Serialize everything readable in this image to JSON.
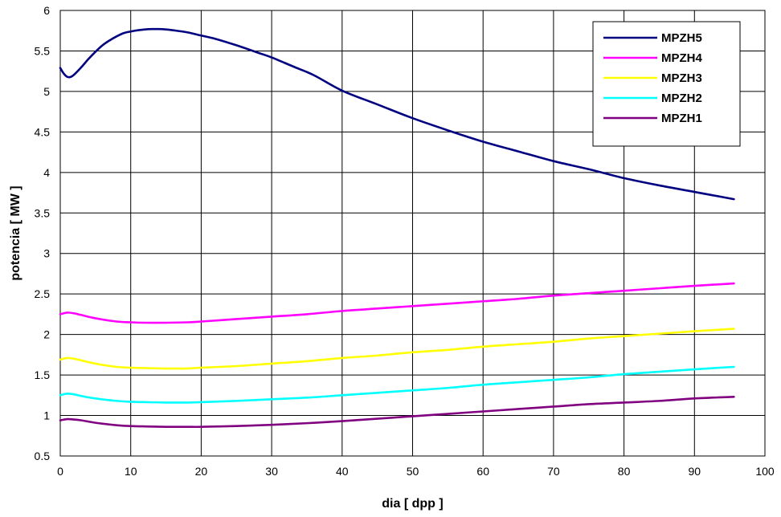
{
  "chart_data": {
    "type": "line",
    "xlabel": "dia [ dpp ]",
    "ylabel": "potencia [ MW ]",
    "xlim": [
      0,
      100
    ],
    "ylim": [
      0.5,
      6
    ],
    "xticks": [
      0,
      10,
      20,
      30,
      40,
      50,
      60,
      70,
      80,
      90,
      100
    ],
    "yticks": [
      0.5,
      1,
      1.5,
      2,
      2.5,
      3,
      3.5,
      4,
      4.5,
      5,
      5.5,
      6
    ],
    "grid": true,
    "legend_position": "top-right",
    "series": [
      {
        "name": "MPZH5",
        "color": "#000080",
        "x": [
          0,
          0.5,
          1,
          1.5,
          2,
          3,
          4,
          5,
          6,
          7,
          8,
          9,
          10,
          11,
          12,
          13,
          14,
          15,
          16,
          18,
          20,
          22,
          25,
          28,
          30,
          33,
          36,
          40,
          45,
          50,
          55,
          60,
          65,
          70,
          75,
          80,
          85,
          90,
          95.6
        ],
        "y": [
          5.29,
          5.22,
          5.18,
          5.18,
          5.21,
          5.3,
          5.4,
          5.49,
          5.57,
          5.63,
          5.68,
          5.72,
          5.74,
          5.755,
          5.765,
          5.77,
          5.77,
          5.765,
          5.755,
          5.73,
          5.69,
          5.65,
          5.57,
          5.48,
          5.42,
          5.31,
          5.2,
          5.01,
          4.84,
          4.67,
          4.52,
          4.38,
          4.26,
          4.14,
          4.04,
          3.93,
          3.84,
          3.76,
          3.67
        ]
      },
      {
        "name": "MPZH4",
        "color": "#ff00ff",
        "x": [
          0,
          1,
          2,
          3,
          5,
          8,
          10,
          12,
          15,
          18,
          20,
          25,
          30,
          35,
          40,
          45,
          50,
          55,
          60,
          65,
          70,
          75,
          80,
          85,
          90,
          95.6
        ],
        "y": [
          2.25,
          2.27,
          2.26,
          2.24,
          2.2,
          2.16,
          2.15,
          2.145,
          2.145,
          2.15,
          2.16,
          2.19,
          2.22,
          2.25,
          2.29,
          2.32,
          2.35,
          2.38,
          2.41,
          2.44,
          2.48,
          2.51,
          2.54,
          2.57,
          2.6,
          2.63
        ]
      },
      {
        "name": "MPZH3",
        "color": "#ffff00",
        "x": [
          0,
          1,
          2,
          3,
          5,
          8,
          10,
          12,
          15,
          18,
          20,
          25,
          30,
          35,
          40,
          45,
          50,
          55,
          60,
          65,
          70,
          75,
          80,
          85,
          90,
          95.6
        ],
        "y": [
          1.69,
          1.71,
          1.7,
          1.68,
          1.64,
          1.6,
          1.59,
          1.585,
          1.58,
          1.58,
          1.59,
          1.61,
          1.64,
          1.67,
          1.71,
          1.74,
          1.78,
          1.81,
          1.85,
          1.88,
          1.91,
          1.95,
          1.98,
          2.01,
          2.04,
          2.07
        ]
      },
      {
        "name": "MPZH2",
        "color": "#00ffff",
        "x": [
          0,
          1,
          2,
          3,
          5,
          8,
          10,
          12,
          15,
          18,
          20,
          25,
          30,
          35,
          40,
          45,
          50,
          55,
          60,
          65,
          70,
          75,
          80,
          85,
          90,
          95.6
        ],
        "y": [
          1.25,
          1.27,
          1.26,
          1.24,
          1.21,
          1.18,
          1.17,
          1.165,
          1.16,
          1.16,
          1.165,
          1.18,
          1.2,
          1.22,
          1.25,
          1.28,
          1.31,
          1.34,
          1.38,
          1.41,
          1.44,
          1.47,
          1.51,
          1.54,
          1.57,
          1.6
        ]
      },
      {
        "name": "MPZH1",
        "color": "#800080",
        "x": [
          0,
          1,
          2,
          3,
          5,
          8,
          10,
          12,
          15,
          18,
          20,
          25,
          30,
          35,
          40,
          45,
          50,
          55,
          60,
          65,
          70,
          75,
          80,
          85,
          90,
          95.6
        ],
        "y": [
          0.94,
          0.955,
          0.95,
          0.94,
          0.91,
          0.88,
          0.87,
          0.865,
          0.86,
          0.86,
          0.86,
          0.87,
          0.885,
          0.905,
          0.93,
          0.96,
          0.99,
          1.02,
          1.05,
          1.08,
          1.11,
          1.14,
          1.16,
          1.18,
          1.21,
          1.23
        ]
      }
    ]
  }
}
